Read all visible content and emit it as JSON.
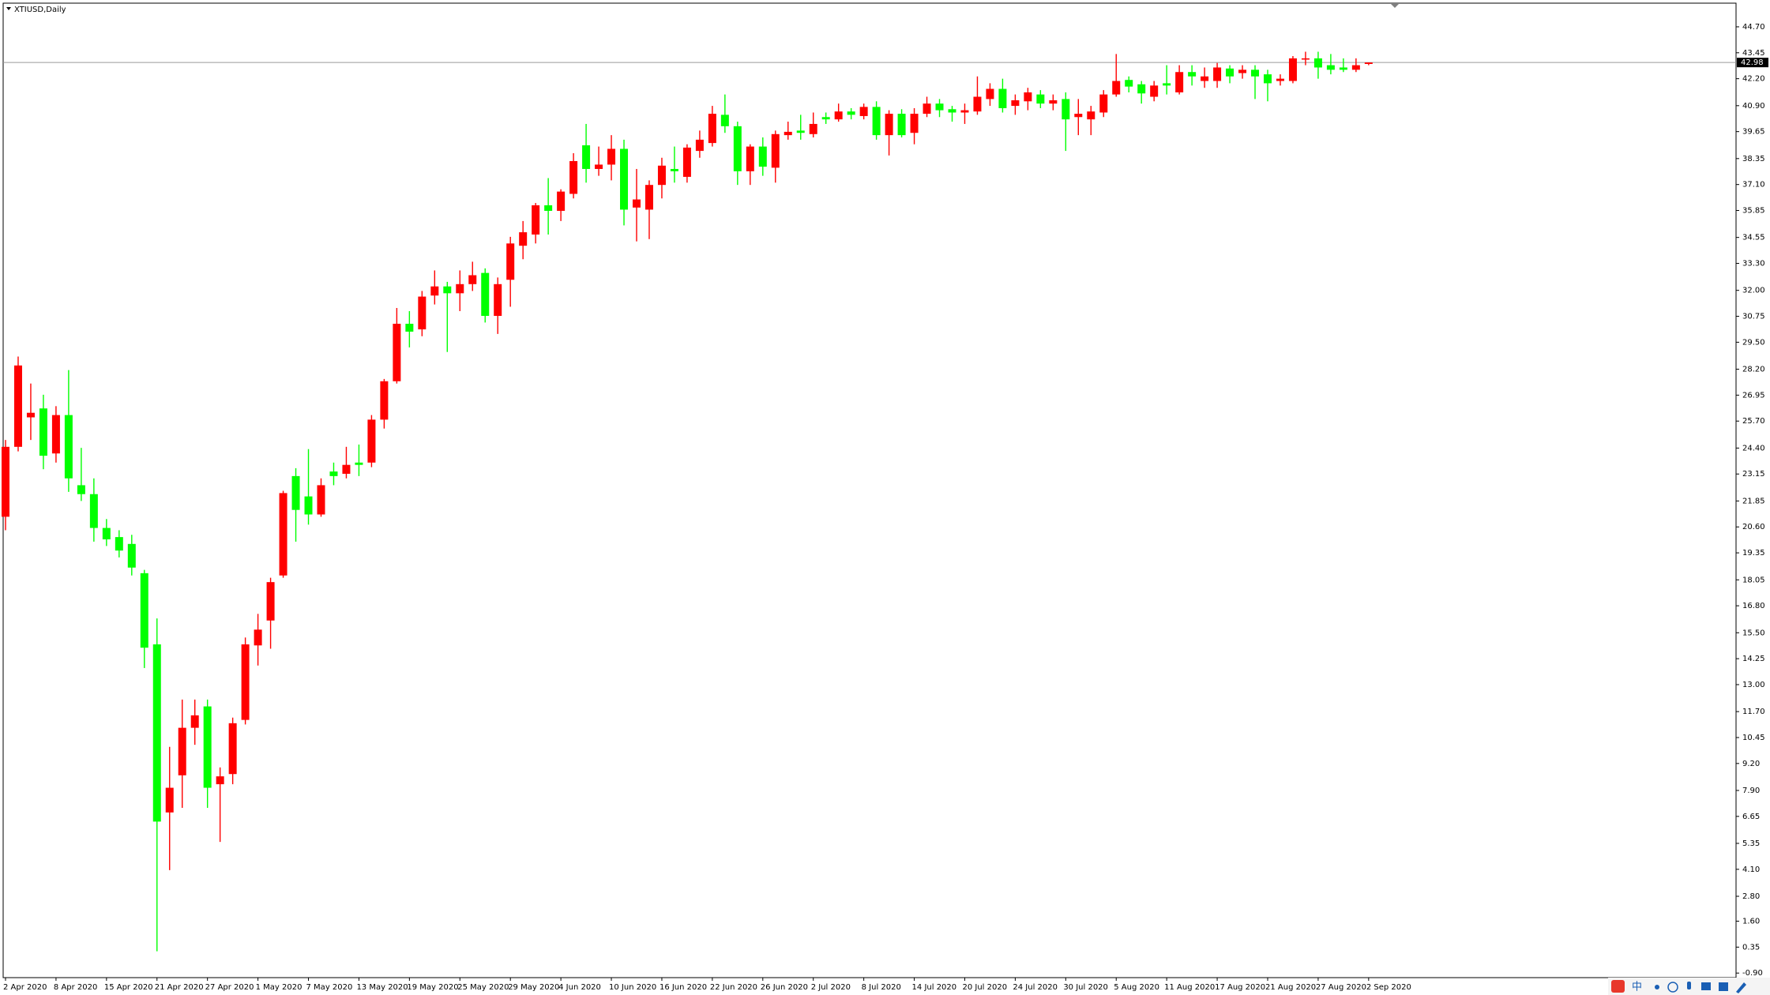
{
  "chart_data": {
    "type": "candlestick",
    "title": "XTIUSD,Daily",
    "categories": [
      "2 Apr 2020",
      null,
      null,
      null,
      "8 Apr 2020",
      null,
      null,
      null,
      "15 Apr 2020",
      null,
      null,
      null,
      "21 Apr 2020",
      null,
      null,
      null,
      "27 Apr 2020",
      null,
      null,
      null,
      "1 May 2020",
      null,
      null,
      null,
      "7 May 2020",
      null,
      null,
      null,
      "13 May 2020",
      null,
      null,
      null,
      "19 May 2020",
      null,
      null,
      null,
      "25 May 2020",
      null,
      null,
      null,
      "29 May 2020",
      null,
      null,
      null,
      "4 Jun 2020",
      null,
      null,
      null,
      "10 Jun 2020",
      null,
      null,
      null,
      "16 Jun 2020",
      null,
      null,
      null,
      "22 Jun 2020",
      null,
      null,
      null,
      "26 Jun 2020",
      null,
      null,
      null,
      "2 Jul 2020",
      null,
      null,
      null,
      "8 Jul 2020",
      null,
      null,
      null,
      "14 Jul 2020",
      null,
      null,
      null,
      "20 Jul 2020",
      null,
      null,
      null,
      "24 Jul 2020",
      null,
      null,
      null,
      "30 Jul 2020",
      null,
      null,
      null,
      "5 Aug 2020",
      null,
      null,
      null,
      "11 Aug 2020",
      null,
      null,
      null,
      "17 Aug 2020",
      null,
      null,
      null,
      "21 Aug 2020",
      null,
      null,
      null,
      "27 Aug 2020",
      null,
      null,
      null,
      "2 Sep 2020"
    ],
    "open": [
      21.09,
      24.46,
      25.88,
      26.31,
      24.14,
      25.99,
      22.61,
      22.18,
      20.55,
      20.11,
      19.78,
      18.37,
      14.94,
      6.84,
      8.63,
      10.92,
      11.95,
      8.2,
      8.69,
      11.3,
      14.89,
      16.09,
      18.26,
      23.05,
      22.07,
      21.2,
      23.27,
      23.16,
      23.7,
      23.7,
      25.77,
      27.62,
      30.39,
      30.12,
      31.75,
      32.19,
      31.86,
      32.3,
      32.84,
      30.77,
      32.51,
      34.15,
      34.69,
      36.1,
      35.83,
      36.65,
      38.99,
      37.85,
      38.06,
      38.82,
      35.99,
      35.89,
      37.08,
      37.85,
      37.47,
      38.72,
      39.1,
      40.46,
      39.91,
      37.74,
      38.93,
      37.91,
      39.48,
      39.7,
      39.53,
      40.35,
      40.24,
      40.62,
      40.4,
      40.84,
      39.48,
      40.51,
      39.59,
      40.51,
      41.0,
      40.73,
      40.57,
      40.62,
      41.22,
      41.71,
      40.89,
      41.11,
      41.44,
      41.0,
      41.22,
      40.35,
      40.24,
      40.57,
      41.44,
      42.14,
      41.93,
      41.33,
      41.98,
      41.54,
      42.52,
      42.09,
      42.09,
      42.69,
      42.47,
      42.63,
      42.41,
      42.09,
      42.09,
      43.12,
      43.18,
      42.85,
      42.74,
      42.63,
      42.91
    ],
    "high": [
      24.79,
      28.81,
      27.51,
      26.97,
      26.42,
      28.16,
      24.41,
      22.94,
      20.98,
      20.44,
      20.22,
      18.53,
      16.19,
      10.0,
      12.28,
      12.28,
      12.28,
      9.01,
      11.41,
      15.27,
      16.41,
      18.15,
      22.34,
      23.43,
      24.35,
      22.94,
      23.7,
      24.46,
      24.57,
      25.99,
      27.73,
      31.15,
      31.0,
      31.97,
      32.96,
      32.41,
      32.96,
      33.38,
      33.06,
      32.62,
      34.58,
      35.34,
      36.21,
      37.41,
      36.87,
      38.61,
      40.02,
      38.93,
      39.48,
      39.26,
      37.85,
      37.3,
      38.39,
      38.93,
      39.04,
      39.7,
      40.89,
      41.44,
      40.13,
      39.04,
      39.37,
      39.7,
      40.13,
      40.46,
      40.57,
      40.57,
      41.0,
      40.78,
      41.0,
      41.11,
      40.68,
      40.73,
      40.78,
      41.33,
      41.22,
      40.89,
      41.0,
      42.31,
      41.98,
      42.2,
      41.44,
      41.76,
      41.65,
      41.44,
      41.54,
      41.22,
      40.89,
      41.65,
      43.39,
      42.31,
      42.09,
      42.09,
      42.85,
      42.85,
      42.85,
      42.74,
      42.96,
      42.85,
      42.85,
      42.85,
      42.63,
      42.41,
      43.29,
      43.5,
      43.5,
      43.39,
      43.18,
      43.18,
      42.98
    ],
    "low": [
      20.44,
      24.24,
      24.79,
      23.38,
      23.7,
      22.29,
      21.85,
      19.89,
      19.68,
      19.13,
      18.26,
      13.8,
      0.15,
      4.06,
      7.06,
      10.1,
      7.06,
      5.42,
      8.2,
      11.08,
      13.92,
      14.73,
      18.15,
      19.89,
      20.71,
      21.09,
      22.61,
      22.94,
      23.05,
      23.48,
      25.34,
      27.51,
      29.25,
      29.79,
      31.32,
      29.03,
      31.0,
      31.97,
      30.45,
      29.9,
      31.21,
      33.5,
      34.26,
      34.69,
      35.34,
      36.43,
      37.19,
      37.52,
      37.3,
      35.13,
      34.36,
      34.47,
      36.43,
      37.19,
      37.19,
      38.39,
      38.93,
      39.59,
      37.08,
      37.08,
      37.52,
      37.19,
      39.26,
      39.26,
      39.37,
      40.02,
      40.13,
      40.24,
      40.24,
      39.26,
      38.5,
      39.37,
      39.04,
      40.35,
      40.35,
      40.13,
      40.02,
      40.46,
      40.89,
      40.57,
      40.46,
      40.68,
      40.78,
      40.68,
      38.72,
      39.48,
      39.48,
      40.35,
      41.33,
      41.54,
      41.0,
      41.11,
      41.44,
      41.44,
      41.87,
      41.76,
      41.76,
      41.98,
      42.2,
      41.22,
      41.11,
      41.87,
      41.98,
      42.85,
      42.2,
      42.41,
      42.52,
      42.52,
      42.85
    ],
    "close": [
      24.46,
      28.38,
      26.1,
      24.03,
      25.99,
      22.94,
      22.18,
      20.55,
      20.0,
      19.46,
      18.64,
      14.78,
      6.4,
      8.03,
      10.92,
      11.52,
      8.03,
      8.58,
      11.14,
      14.94,
      15.65,
      17.94,
      22.23,
      21.42,
      21.2,
      22.61,
      23.05,
      23.59,
      23.59,
      25.77,
      27.62,
      30.39,
      30.01,
      31.7,
      32.19,
      31.86,
      32.3,
      32.73,
      30.77,
      32.3,
      34.26,
      34.8,
      36.1,
      35.83,
      36.76,
      38.23,
      37.85,
      38.06,
      38.82,
      35.89,
      36.38,
      37.08,
      38.01,
      37.74,
      38.88,
      39.26,
      40.51,
      39.91,
      37.74,
      38.93,
      37.96,
      39.53,
      39.64,
      39.59,
      40.02,
      40.24,
      40.62,
      40.46,
      40.84,
      39.48,
      40.51,
      39.48,
      40.51,
      41.0,
      40.68,
      40.57,
      40.68,
      41.33,
      41.71,
      40.78,
      41.16,
      41.54,
      41.0,
      41.16,
      40.24,
      40.51,
      40.62,
      41.44,
      42.09,
      41.82,
      41.49,
      41.87,
      41.87,
      42.52,
      42.31,
      42.31,
      42.74,
      42.31,
      42.63,
      42.31,
      41.98,
      42.2,
      43.18,
      43.18,
      42.74,
      42.63,
      42.63,
      42.85,
      42.98
    ],
    "up_color": "#ff0000",
    "down_color": "#00ff00",
    "ylim": [
      -1.12,
      45.84
    ],
    "yticks": [
      {
        "value": 44.7,
        "label": "44.70"
      },
      43.45,
      {
        "value": 42.2,
        "label": "42.20"
      },
      {
        "value": 40.9,
        "label": "40.90"
      },
      39.65,
      38.35,
      {
        "value": 37.1,
        "label": "37.10"
      },
      35.85,
      34.55,
      {
        "value": 33.3,
        "label": "33.30"
      },
      {
        "value": 32,
        "label": "32.00"
      },
      30.75,
      {
        "value": 29.5,
        "label": "29.50"
      },
      {
        "value": 28.2,
        "label": "28.20"
      },
      26.95,
      {
        "value": 25.7,
        "label": "25.70"
      },
      {
        "value": 24.4,
        "label": "24.40"
      },
      23.15,
      21.85,
      {
        "value": 20.6,
        "label": "20.60"
      },
      19.35,
      18.05,
      {
        "value": 16.8,
        "label": "16.80"
      },
      {
        "value": 15.5,
        "label": "15.50"
      },
      14.25,
      {
        "value": 13,
        "label": "13.00"
      },
      {
        "value": 11.7,
        "label": "11.70"
      },
      10.45,
      {
        "value": 9.2,
        "label": "9.20"
      },
      {
        "value": 7.9,
        "label": "7.90"
      },
      6.65,
      5.35,
      {
        "value": 4.1,
        "label": "4.10"
      },
      {
        "value": 2.8,
        "label": "2.80"
      },
      {
        "value": 1.6,
        "label": "1.60"
      },
      0.35,
      {
        "value": -0.9,
        "label": "-0.90"
      }
    ],
    "current_price": 42.98
  },
  "ime_bar": {
    "lang": "中"
  }
}
